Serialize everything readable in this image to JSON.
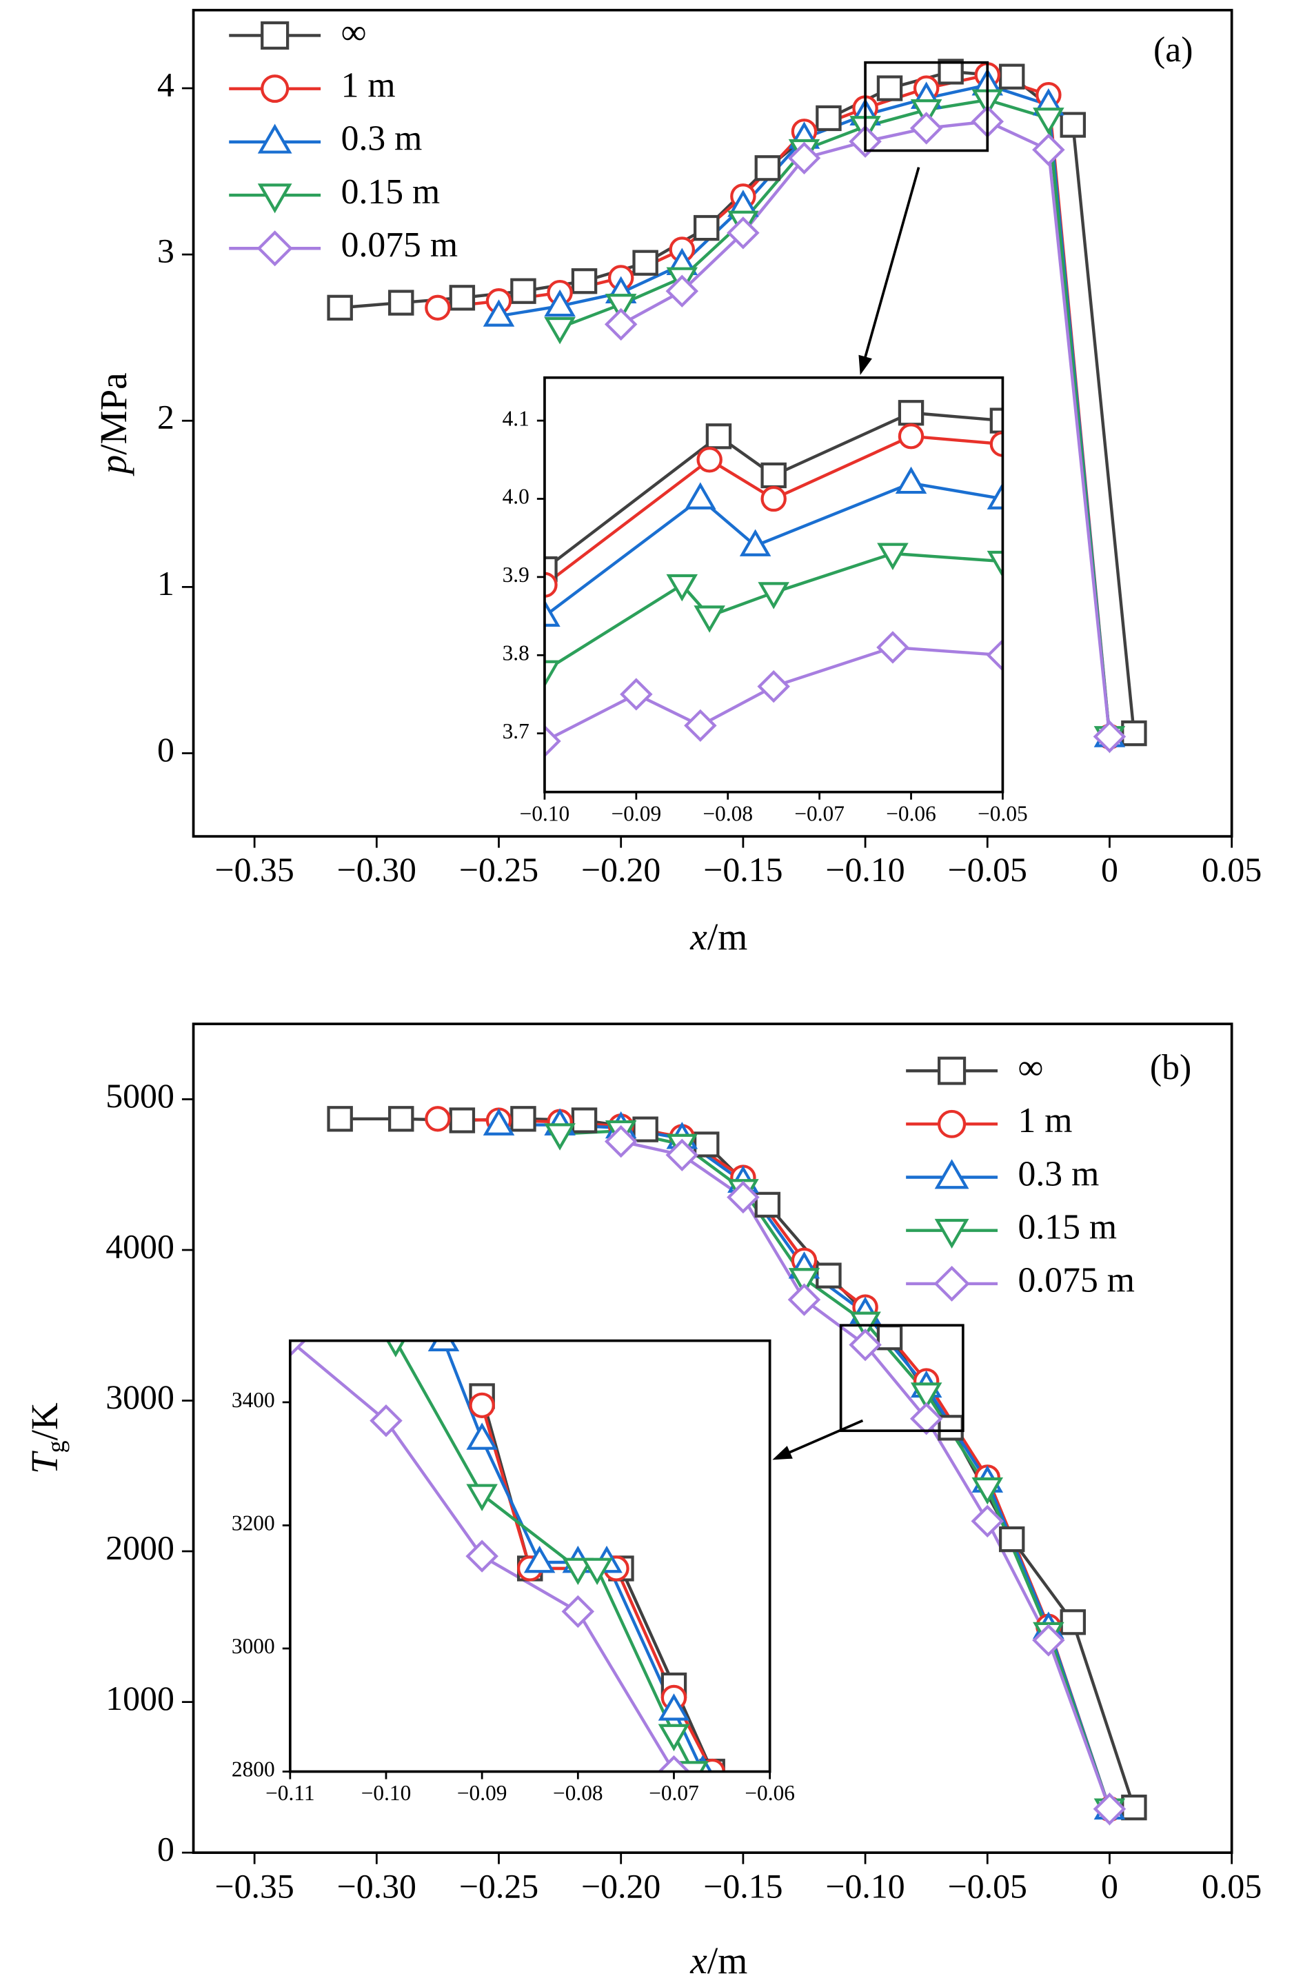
{
  "chart_data": [
    {
      "type": "line",
      "annotation": "(a)",
      "x_label": "x/m",
      "y_label": "p/MPa",
      "legend": "upper left",
      "xlim": [
        -0.375,
        0.05
      ],
      "ylim": [
        -0.5,
        4.47
      ],
      "xticks": [
        {
          "value": -0.35,
          "label": "−0.35"
        },
        {
          "value": -0.3,
          "label": "−0.30"
        },
        {
          "value": -0.25,
          "label": "−0.25"
        },
        {
          "value": -0.2,
          "label": "−0.20"
        },
        {
          "value": -0.15,
          "label": "−0.15"
        },
        {
          "value": -0.1,
          "label": "−0.10"
        },
        {
          "value": -0.05,
          "label": "−0.05"
        },
        0,
        0.05
      ],
      "yticks": [
        0,
        1,
        2,
        3,
        4
      ],
      "series": [
        {
          "name": "∞",
          "color": "#404040",
          "marker": "square",
          "x": [
            -0.315,
            -0.29,
            -0.265,
            -0.24,
            -0.215,
            -0.19,
            -0.165,
            -0.14,
            -0.115,
            -0.09,
            -0.065,
            -0.04,
            -0.015,
            0.01
          ],
          "values": [
            2.68,
            2.71,
            2.74,
            2.78,
            2.84,
            2.95,
            3.16,
            3.52,
            3.82,
            4.0,
            4.1,
            4.07,
            3.78,
            0.12
          ]
        },
        {
          "name": "1 m",
          "color": "#e8312a",
          "marker": "circle",
          "x": [
            -0.275,
            -0.25,
            -0.225,
            -0.2,
            -0.175,
            -0.15,
            -0.125,
            -0.1,
            -0.075,
            -0.05,
            -0.025,
            0
          ],
          "values": [
            2.68,
            2.72,
            2.77,
            2.86,
            3.03,
            3.35,
            3.74,
            3.88,
            4.0,
            4.08,
            3.96,
            0.1
          ]
        },
        {
          "name": "0.3 m",
          "color": "#1a6fd1",
          "marker": "triangle-up",
          "x": [
            -0.25,
            -0.225,
            -0.2,
            -0.175,
            -0.15,
            -0.125,
            -0.1,
            -0.075,
            -0.05,
            -0.025,
            0
          ],
          "values": [
            2.63,
            2.69,
            2.77,
            2.94,
            3.29,
            3.7,
            3.84,
            3.94,
            4.02,
            3.9,
            0.1
          ]
        },
        {
          "name": "0.15 m",
          "color": "#2ca05a",
          "marker": "triangle-down",
          "x": [
            -0.225,
            -0.2,
            -0.175,
            -0.15,
            -0.125,
            -0.1,
            -0.075,
            -0.05,
            -0.025,
            0
          ],
          "values": [
            2.56,
            2.7,
            2.86,
            3.2,
            3.63,
            3.77,
            3.87,
            3.93,
            3.82,
            0.1
          ]
        },
        {
          "name": "0.075 m",
          "color": "#a77ee0",
          "marker": "diamond",
          "x": [
            -0.2,
            -0.175,
            -0.15,
            -0.125,
            -0.1,
            -0.075,
            -0.05,
            -0.025,
            0
          ],
          "values": [
            2.58,
            2.78,
            3.13,
            3.58,
            3.68,
            3.76,
            3.8,
            3.63,
            0.1
          ]
        }
      ]
    },
    {
      "type": "line",
      "xlim": [
        -0.1,
        -0.05
      ],
      "ylim": [
        3.625,
        4.155
      ],
      "xticks": [
        {
          "value": -0.1,
          "label": "−0.10"
        },
        {
          "value": -0.09,
          "label": "−0.09"
        },
        {
          "value": -0.08,
          "label": "−0.08"
        },
        {
          "value": -0.07,
          "label": "−0.07"
        },
        {
          "value": -0.06,
          "label": "−0.06"
        },
        {
          "value": -0.05,
          "label": "−0.05"
        }
      ],
      "yticks": [
        3.7,
        3.8,
        3.9,
        {
          "value": 4.0,
          "label": "4.0"
        },
        4.1
      ],
      "series": [
        {
          "color": "#404040",
          "marker": "square",
          "x": [
            -0.1,
            -0.081,
            -0.075,
            -0.06,
            -0.05
          ],
          "values": [
            3.91,
            4.08,
            4.03,
            4.11,
            4.1
          ]
        },
        {
          "color": "#e8312a",
          "marker": "circle",
          "x": [
            -0.1,
            -0.082,
            -0.075,
            -0.06,
            -0.05
          ],
          "values": [
            3.89,
            4.05,
            4.0,
            4.08,
            4.07
          ]
        },
        {
          "color": "#1a6fd1",
          "marker": "triangle-up",
          "x": [
            -0.1,
            -0.083,
            -0.077,
            -0.06,
            -0.05
          ],
          "values": [
            3.85,
            4.0,
            3.94,
            4.02,
            4.0
          ]
        },
        {
          "color": "#2ca05a",
          "marker": "triangle-down",
          "x": [
            -0.1,
            -0.085,
            -0.082,
            -0.075,
            -0.062,
            -0.05
          ],
          "values": [
            3.78,
            3.89,
            3.85,
            3.88,
            3.93,
            3.92
          ]
        },
        {
          "color": "#a77ee0",
          "marker": "diamond",
          "x": [
            -0.1,
            -0.09,
            -0.083,
            -0.075,
            -0.062,
            -0.05
          ],
          "values": [
            3.69,
            3.75,
            3.71,
            3.76,
            3.81,
            3.8
          ]
        }
      ]
    },
    {
      "type": "line",
      "annotation": "(b)",
      "x_label": "x/m",
      "y_label": "Tg/K",
      "legend": "upper right",
      "xlim": [
        -0.375,
        0.05
      ],
      "ylim": [
        0,
        5500
      ],
      "xticks": [
        {
          "value": -0.35,
          "label": "−0.35"
        },
        {
          "value": -0.3,
          "label": "−0.30"
        },
        {
          "value": -0.25,
          "label": "−0.25"
        },
        {
          "value": -0.2,
          "label": "−0.20"
        },
        {
          "value": -0.15,
          "label": "−0.15"
        },
        {
          "value": -0.1,
          "label": "−0.10"
        },
        {
          "value": -0.05,
          "label": "−0.05"
        },
        0,
        0.05
      ],
      "yticks": [
        0,
        1000,
        2000,
        3000,
        4000,
        5000
      ],
      "series": [
        {
          "name": "∞",
          "color": "#404040",
          "marker": "square",
          "x": [
            -0.315,
            -0.29,
            -0.265,
            -0.24,
            -0.215,
            -0.19,
            -0.165,
            -0.14,
            -0.115,
            -0.09,
            -0.065,
            -0.04,
            -0.015,
            0.01
          ],
          "values": [
            4870,
            4870,
            4860,
            4870,
            4860,
            4800,
            4700,
            4300,
            3830,
            3420,
            2820,
            2080,
            1530,
            300
          ]
        },
        {
          "name": "1 m",
          "color": "#e8312a",
          "marker": "circle",
          "x": [
            -0.275,
            -0.25,
            -0.225,
            -0.2,
            -0.175,
            -0.15,
            -0.125,
            -0.1,
            -0.075,
            -0.05,
            -0.025,
            0
          ],
          "values": [
            4870,
            4860,
            4850,
            4820,
            4750,
            4480,
            3930,
            3620,
            3130,
            2490,
            1500,
            290
          ]
        },
        {
          "name": "0.3 m",
          "color": "#1a6fd1",
          "marker": "triangle-up",
          "x": [
            -0.25,
            -0.225,
            -0.2,
            -0.175,
            -0.15,
            -0.125,
            -0.1,
            -0.075,
            -0.05,
            -0.025,
            0
          ],
          "values": [
            4830,
            4830,
            4810,
            4740,
            4450,
            3880,
            3580,
            3090,
            2460,
            1490,
            290
          ]
        },
        {
          "name": "0.15 m",
          "color": "#2ca05a",
          "marker": "triangle-down",
          "x": [
            -0.225,
            -0.2,
            -0.175,
            -0.15,
            -0.125,
            -0.1,
            -0.075,
            -0.05,
            -0.025,
            0
          ],
          "values": [
            4770,
            4790,
            4700,
            4400,
            3810,
            3520,
            3050,
            2420,
            1460,
            290
          ]
        },
        {
          "name": "0.075 m",
          "color": "#a77ee0",
          "marker": "diamond",
          "x": [
            -0.2,
            -0.175,
            -0.15,
            -0.125,
            -0.1,
            -0.075,
            -0.05,
            -0.025,
            0
          ],
          "values": [
            4720,
            4630,
            4350,
            3670,
            3370,
            2880,
            2200,
            1410,
            290
          ]
        }
      ]
    },
    {
      "type": "line",
      "xlim": [
        -0.11,
        -0.06
      ],
      "ylim": [
        2800,
        3500
      ],
      "xticks": [
        {
          "value": -0.11,
          "label": "−0.11"
        },
        {
          "value": -0.1,
          "label": "−0.10"
        },
        {
          "value": -0.09,
          "label": "−0.09"
        },
        {
          "value": -0.08,
          "label": "−0.08"
        },
        {
          "value": -0.07,
          "label": "−0.07"
        },
        {
          "value": -0.06,
          "label": "−0.06"
        }
      ],
      "yticks": [
        2800,
        3000,
        3200,
        3400
      ],
      "series": [
        {
          "color": "#404040",
          "marker": "square",
          "x": [
            -0.09,
            -0.085,
            -0.0755,
            -0.07,
            -0.066
          ],
          "values": [
            3410,
            3130,
            3130,
            2940,
            2800
          ]
        },
        {
          "color": "#e8312a",
          "marker": "circle",
          "x": [
            -0.09,
            -0.085,
            -0.076,
            -0.07,
            -0.066
          ],
          "values": [
            3395,
            3130,
            3130,
            2920,
            2800
          ]
        },
        {
          "color": "#1a6fd1",
          "marker": "triangle-up",
          "x": [
            -0.094,
            -0.09,
            -0.084,
            -0.08,
            -0.077,
            -0.07,
            -0.067
          ],
          "values": [
            3500,
            3340,
            3140,
            3140,
            3140,
            2900,
            2800
          ]
        },
        {
          "color": "#2ca05a",
          "marker": "triangle-down",
          "x": [
            -0.099,
            -0.09,
            -0.08,
            -0.078,
            -0.07,
            -0.068
          ],
          "values": [
            3500,
            3250,
            3130,
            3130,
            2860,
            2800
          ]
        },
        {
          "color": "#a77ee0",
          "marker": "diamond",
          "x": [
            -0.11,
            -0.1,
            -0.09,
            -0.08,
            -0.07
          ],
          "values": [
            3500,
            3370,
            3150,
            3060,
            2800
          ]
        }
      ]
    }
  ]
}
